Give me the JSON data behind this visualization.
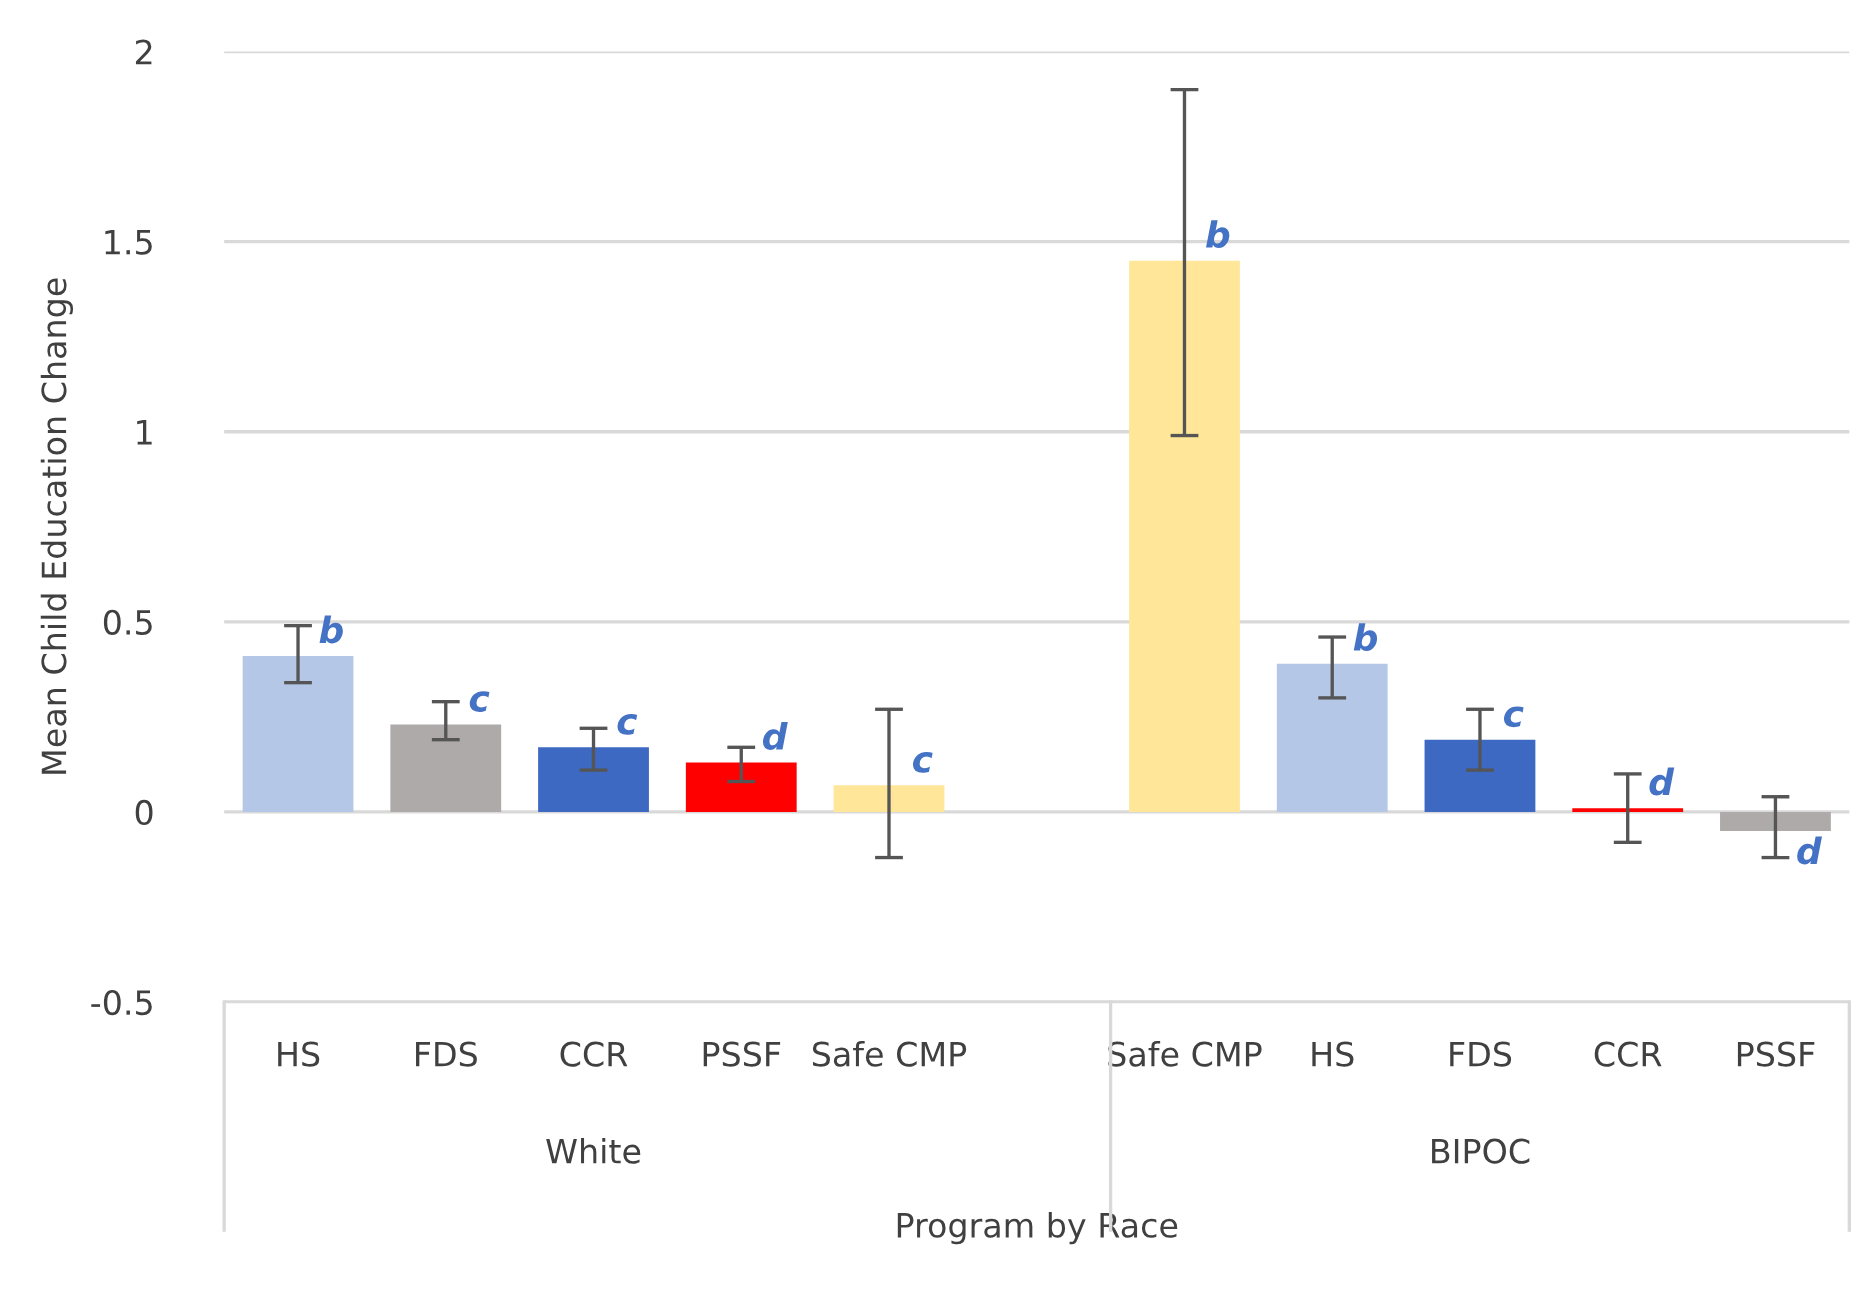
{
  "chart_data": {
    "type": "bar",
    "xlabel": "Program by Race",
    "ylabel": "Mean Child Education Change",
    "categories": [
      "HS",
      "FDS",
      "CCR",
      "PSSF",
      "Safe CMP",
      null,
      "Safe CMP",
      "HS",
      "FDS",
      "CCR",
      "PSSF"
    ],
    "values": [
      0.41,
      0.23,
      0.17,
      0.13,
      0.07,
      null,
      1.45,
      0.39,
      0.19,
      0.01,
      -0.05
    ],
    "colors": [
      "#b4c7e7",
      "#aeaaaa",
      "#3d69c2",
      "#ff0000",
      "#ffe699",
      "#ffffff",
      "#ffe699",
      "#b4c7e7",
      "#3d69c2",
      "#ff0000",
      "#aeaaaa"
    ],
    "errors": [
      [
        0.34,
        0.49
      ],
      [
        0.19,
        0.29
      ],
      [
        0.11,
        0.22
      ],
      [
        0.08,
        0.17
      ],
      [
        -0.12,
        0.27
      ],
      null,
      [
        0.99,
        1.9
      ],
      [
        0.3,
        0.46
      ],
      [
        0.11,
        0.27
      ],
      [
        -0.08,
        0.1
      ],
      [
        -0.12,
        0.04
      ]
    ],
    "value_labels": [
      "b",
      "c",
      "c",
      "d",
      "c",
      null,
      "b",
      "b",
      "c",
      "d",
      "d"
    ],
    "annotations": [
      "White",
      "BIPOC"
    ],
    "ylim": [
      -0.5,
      2
    ],
    "yticks": [
      {
        "value": -0.5,
        "label": "-0.5"
      },
      0,
      0.5,
      1,
      1.5,
      2
    ],
    "grid": "y"
  }
}
